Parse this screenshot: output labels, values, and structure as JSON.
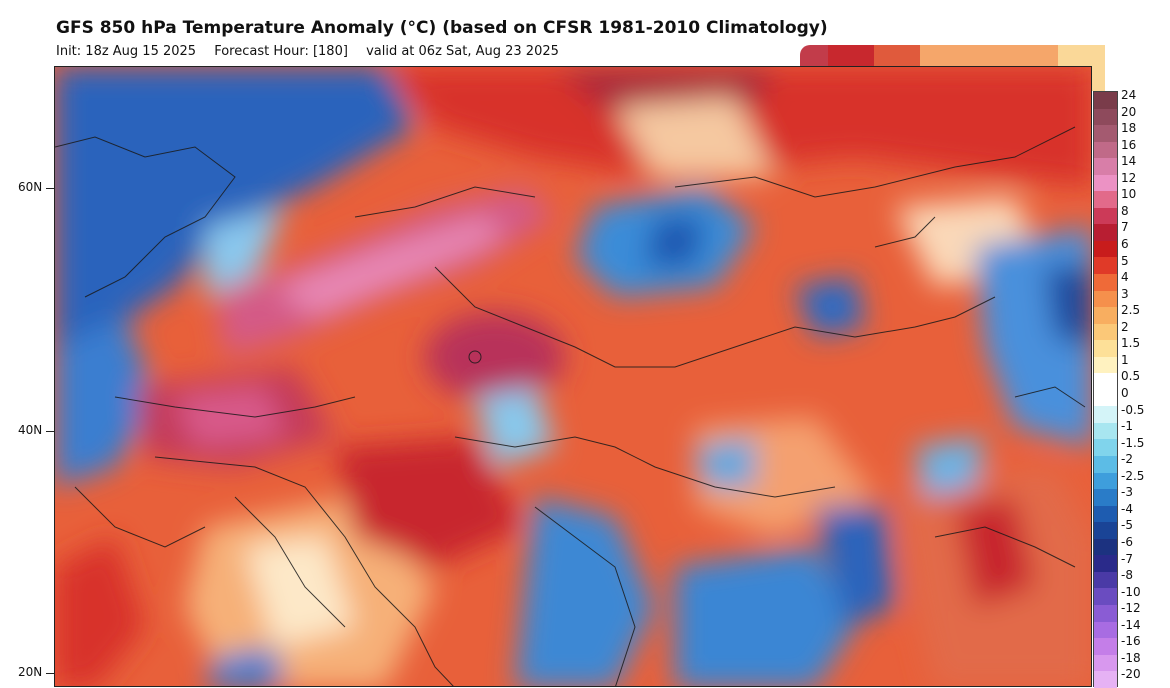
{
  "header": {
    "title": "GFS 850 hPa Temperature Anomaly (°C) (based on CFSR 1981-2010 Climatology)",
    "init": "Init: 18z Aug 15 2025",
    "forecast_hour": "Forecast Hour: [180]",
    "valid": "valid at 06z Sat, Aug 23 2025"
  },
  "lat_labels": [
    "60N",
    "40N",
    "20N"
  ],
  "colorbar": {
    "labels": [
      "24",
      "20",
      "18",
      "16",
      "14",
      "12",
      "10",
      "8",
      "7",
      "6",
      "5",
      "4",
      "3",
      "2.5",
      "2",
      "1.5",
      "1",
      "0.5",
      "0",
      "-0.5",
      "-1",
      "-1.5",
      "-2",
      "-2.5",
      "-3",
      "-4",
      "-5",
      "-6",
      "-7",
      "-8",
      "-10",
      "-12",
      "-14",
      "-16",
      "-18",
      "-20"
    ],
    "colors": [
      "#7a3c4a",
      "#8e4a5c",
      "#a45a70",
      "#c06a88",
      "#d87ea8",
      "#ec92c4",
      "#e26a8a",
      "#cc3a58",
      "#b81e32",
      "#c81c1c",
      "#e03a28",
      "#ef6a38",
      "#f5904c",
      "#f8ae60",
      "#fbc878",
      "#fde098",
      "#fff2c0",
      "#ffffff",
      "#ffffff",
      "#d4f4f8",
      "#a8e6f0",
      "#80d4ec",
      "#5cbce6",
      "#3e9edc",
      "#2a7cc8",
      "#1e5cb0",
      "#1a4496",
      "#1c3280",
      "#2a2a8a",
      "#4a3aa6",
      "#6a4cc0",
      "#8a5cd4",
      "#a86ce2",
      "#c47ee8",
      "#d898ee",
      "#e6b2f4"
    ]
  },
  "top_swatches": [
    "#c23c4a",
    "#c8282e",
    "#e05a3c",
    "#f5a66a",
    "#fad898"
  ],
  "map": {
    "description_colors": {
      "ocean_cold": "#2a6ac4",
      "warm": "#e05a30",
      "hot": "#c8282e",
      "very_hot": "#cc4a7a",
      "neutral": "#fbe8c8"
    }
  }
}
